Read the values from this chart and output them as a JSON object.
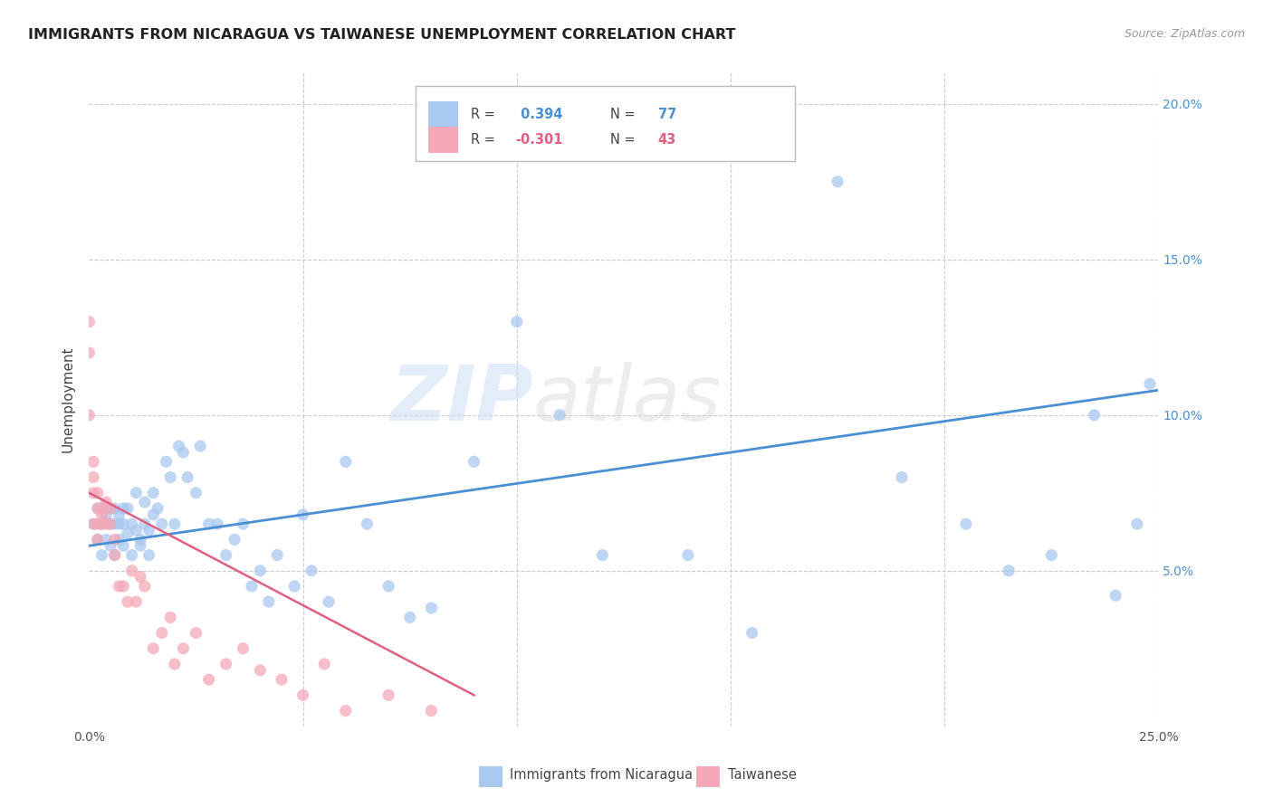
{
  "title": "IMMIGRANTS FROM NICARAGUA VS TAIWANESE UNEMPLOYMENT CORRELATION CHART",
  "source": "Source: ZipAtlas.com",
  "ylabel": "Unemployment",
  "xlim": [
    0,
    0.25
  ],
  "ylim": [
    0,
    0.21
  ],
  "yticks": [
    0.05,
    0.1,
    0.15,
    0.2
  ],
  "xtick_labels_show": [
    "0.0%",
    "25.0%"
  ],
  "ytick_labels": [
    "5.0%",
    "10.0%",
    "15.0%",
    "20.0%"
  ],
  "legend_label1": "Immigrants from Nicaragua",
  "legend_label2": "Taiwanese",
  "r1": 0.394,
  "n1": 77,
  "r2": -0.301,
  "n2": 43,
  "blue_color": "#a8c8f0",
  "pink_color": "#f4a8b8",
  "trendline_blue": "#4a8fd4",
  "trendline_pink": "#e06080",
  "watermark_zip": "ZIP",
  "watermark_atlas": "atlas",
  "blue_x": [
    0.001,
    0.002,
    0.002,
    0.003,
    0.003,
    0.003,
    0.004,
    0.004,
    0.005,
    0.005,
    0.005,
    0.006,
    0.006,
    0.006,
    0.007,
    0.007,
    0.007,
    0.008,
    0.008,
    0.008,
    0.009,
    0.009,
    0.01,
    0.01,
    0.011,
    0.011,
    0.012,
    0.012,
    0.013,
    0.013,
    0.014,
    0.014,
    0.015,
    0.015,
    0.016,
    0.017,
    0.018,
    0.019,
    0.02,
    0.021,
    0.022,
    0.023,
    0.025,
    0.026,
    0.028,
    0.03,
    0.032,
    0.034,
    0.036,
    0.038,
    0.04,
    0.042,
    0.044,
    0.048,
    0.05,
    0.052,
    0.056,
    0.06,
    0.065,
    0.07,
    0.075,
    0.08,
    0.09,
    0.1,
    0.11,
    0.12,
    0.14,
    0.155,
    0.175,
    0.19,
    0.205,
    0.215,
    0.225,
    0.235,
    0.24,
    0.245,
    0.248
  ],
  "blue_y": [
    0.065,
    0.07,
    0.06,
    0.065,
    0.055,
    0.07,
    0.068,
    0.06,
    0.07,
    0.065,
    0.058,
    0.065,
    0.055,
    0.07,
    0.068,
    0.06,
    0.065,
    0.058,
    0.07,
    0.065,
    0.062,
    0.07,
    0.065,
    0.055,
    0.063,
    0.075,
    0.06,
    0.058,
    0.072,
    0.065,
    0.063,
    0.055,
    0.068,
    0.075,
    0.07,
    0.065,
    0.085,
    0.08,
    0.065,
    0.09,
    0.088,
    0.08,
    0.075,
    0.09,
    0.065,
    0.065,
    0.055,
    0.06,
    0.065,
    0.045,
    0.05,
    0.04,
    0.055,
    0.045,
    0.068,
    0.05,
    0.04,
    0.085,
    0.065,
    0.045,
    0.035,
    0.038,
    0.085,
    0.13,
    0.1,
    0.055,
    0.055,
    0.03,
    0.175,
    0.08,
    0.065,
    0.05,
    0.055,
    0.1,
    0.042,
    0.065,
    0.11
  ],
  "pink_x": [
    0.0,
    0.0,
    0.0,
    0.001,
    0.001,
    0.001,
    0.001,
    0.002,
    0.002,
    0.002,
    0.002,
    0.003,
    0.003,
    0.003,
    0.004,
    0.004,
    0.005,
    0.005,
    0.006,
    0.006,
    0.007,
    0.008,
    0.009,
    0.01,
    0.011,
    0.012,
    0.013,
    0.015,
    0.017,
    0.019,
    0.02,
    0.022,
    0.025,
    0.028,
    0.032,
    0.036,
    0.04,
    0.045,
    0.05,
    0.055,
    0.06,
    0.07,
    0.08
  ],
  "pink_y": [
    0.13,
    0.12,
    0.1,
    0.085,
    0.08,
    0.075,
    0.065,
    0.075,
    0.07,
    0.065,
    0.06,
    0.068,
    0.07,
    0.065,
    0.072,
    0.065,
    0.07,
    0.065,
    0.06,
    0.055,
    0.045,
    0.045,
    0.04,
    0.05,
    0.04,
    0.048,
    0.045,
    0.025,
    0.03,
    0.035,
    0.02,
    0.025,
    0.03,
    0.015,
    0.02,
    0.025,
    0.018,
    0.015,
    0.01,
    0.02,
    0.005,
    0.01,
    0.005
  ],
  "blue_trendline_x": [
    0.0,
    0.25
  ],
  "blue_trendline_y": [
    0.058,
    0.108
  ],
  "pink_trendline_x": [
    0.0,
    0.09
  ],
  "pink_trendline_y": [
    0.075,
    0.01
  ]
}
